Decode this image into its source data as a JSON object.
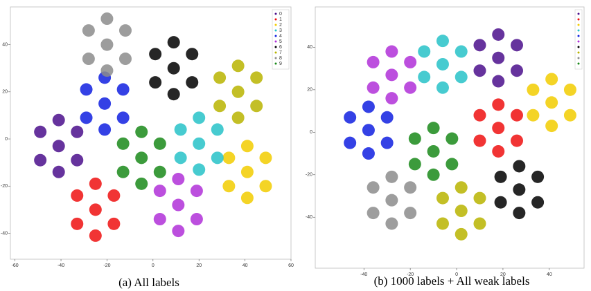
{
  "chart_data": [
    {
      "type": "scatter",
      "caption": "(a) All labels",
      "xlim": [
        -62,
        60
      ],
      "ylim": [
        -51,
        56
      ],
      "xticks": [
        -60,
        -40,
        -20,
        0,
        20,
        40,
        60
      ],
      "yticks": [
        -40,
        -20,
        0,
        20,
        40
      ],
      "legend": "upper right",
      "series": [
        {
          "name": "0",
          "color": "#4b0f8c",
          "x": [
            -41,
            -49,
            -33,
            -49,
            -33,
            -41,
            -41
          ],
          "y": [
            -3,
            3,
            3,
            -9,
            -9,
            8,
            -14
          ]
        },
        {
          "name": "1",
          "color": "#ee1010",
          "x": [
            -25,
            -33,
            -17,
            -33,
            -17,
            -25,
            -25
          ],
          "y": [
            -30,
            -24,
            -24,
            -36,
            -36,
            -19,
            -41
          ]
        },
        {
          "name": "2",
          "color": "#f2cc00",
          "x": [
            41,
            33,
            49,
            33,
            49,
            41,
            41
          ],
          "y": [
            -14,
            -8,
            -8,
            -20,
            -20,
            -3,
            -25
          ]
        },
        {
          "name": "3",
          "color": "#27c2c8",
          "x": [
            20,
            12,
            28,
            12,
            28,
            20,
            20
          ],
          "y": [
            -2,
            4,
            4,
            -8,
            -8,
            9,
            -13
          ]
        },
        {
          "name": "4",
          "color": "#1020e0",
          "x": [
            -21,
            -29,
            -13,
            -29,
            -13,
            -21,
            -21
          ],
          "y": [
            15,
            21,
            21,
            9,
            9,
            26,
            4
          ]
        },
        {
          "name": "5",
          "color": "#b030d8",
          "x": [
            11,
            3,
            19,
            3,
            19,
            11,
            11
          ],
          "y": [
            -28,
            -22,
            -22,
            -34,
            -34,
            -17,
            -39
          ]
        },
        {
          "name": "6",
          "color": "#000000",
          "x": [
            9,
            1,
            17,
            1,
            17,
            9,
            9
          ],
          "y": [
            30,
            36,
            36,
            24,
            24,
            41,
            19
          ]
        },
        {
          "name": "7",
          "color": "#b8b400",
          "x": [
            37,
            29,
            45,
            29,
            45,
            37,
            37
          ],
          "y": [
            20,
            26,
            26,
            14,
            14,
            31,
            9
          ]
        },
        {
          "name": "8",
          "color": "#8c8c8c",
          "x": [
            -20,
            -28,
            -12,
            -28,
            -12,
            -20,
            -20
          ],
          "y": [
            40,
            46,
            46,
            34,
            34,
            51,
            29
          ]
        },
        {
          "name": "9",
          "color": "#1a8a1a",
          "x": [
            -5,
            -13,
            3,
            -13,
            3,
            -5,
            -5
          ],
          "y": [
            -8,
            -2,
            -2,
            -14,
            -14,
            3,
            -19
          ]
        }
      ]
    },
    {
      "type": "scatter",
      "caption": "(b) 1000 labels + All weak labels",
      "xlim": [
        -61,
        55
      ],
      "ylim": [
        -64,
        59
      ],
      "xticks": [
        -40,
        -20,
        0,
        20,
        40
      ],
      "yticks": [
        -40,
        -20,
        0,
        20,
        40
      ],
      "legend": "upper right",
      "series": [
        {
          "color": "#4b0f8c",
          "x": [
            18,
            10,
            26,
            10,
            26,
            18,
            18
          ],
          "y": [
            35,
            41,
            41,
            29,
            29,
            46,
            24
          ]
        },
        {
          "color": "#ee1010",
          "x": [
            18,
            10,
            26,
            10,
            26,
            18,
            18
          ],
          "y": [
            2,
            8,
            8,
            -4,
            -4,
            13,
            -9
          ]
        },
        {
          "color": "#f2cc00",
          "x": [
            41,
            33,
            49,
            33,
            49,
            41,
            41
          ],
          "y": [
            14,
            20,
            20,
            8,
            8,
            25,
            3
          ]
        },
        {
          "color": "#27c2c8",
          "x": [
            -6,
            -14,
            2,
            -14,
            2,
            -6,
            -6
          ],
          "y": [
            32,
            38,
            38,
            26,
            26,
            43,
            21
          ]
        },
        {
          "color": "#1020e0",
          "x": [
            -38,
            -46,
            -30,
            -46,
            -30,
            -38,
            -38
          ],
          "y": [
            1,
            7,
            7,
            -5,
            -5,
            12,
            -10
          ]
        },
        {
          "color": "#b030d8",
          "x": [
            -28,
            -36,
            -20,
            -36,
            -20,
            -28,
            -28
          ],
          "y": [
            27,
            33,
            33,
            21,
            21,
            38,
            16
          ]
        },
        {
          "color": "#000000",
          "x": [
            27,
            19,
            35,
            19,
            35,
            27,
            27
          ],
          "y": [
            -27,
            -21,
            -21,
            -33,
            -33,
            -16,
            -38
          ]
        },
        {
          "color": "#b8b400",
          "x": [
            2,
            -6,
            10,
            -6,
            10,
            2,
            2
          ],
          "y": [
            -37,
            -31,
            -31,
            -43,
            -43,
            -26,
            -48
          ]
        },
        {
          "color": "#8c8c8c",
          "x": [
            -28,
            -36,
            -20,
            -36,
            -20,
            -28,
            -28
          ],
          "y": [
            -32,
            -26,
            -26,
            -38,
            -38,
            -21,
            -43
          ]
        },
        {
          "color": "#1a8a1a",
          "x": [
            -10,
            -18,
            -2,
            -18,
            -2,
            -10,
            -10
          ],
          "y": [
            -9,
            -3,
            -3,
            -15,
            -15,
            2,
            -20
          ]
        }
      ]
    }
  ]
}
